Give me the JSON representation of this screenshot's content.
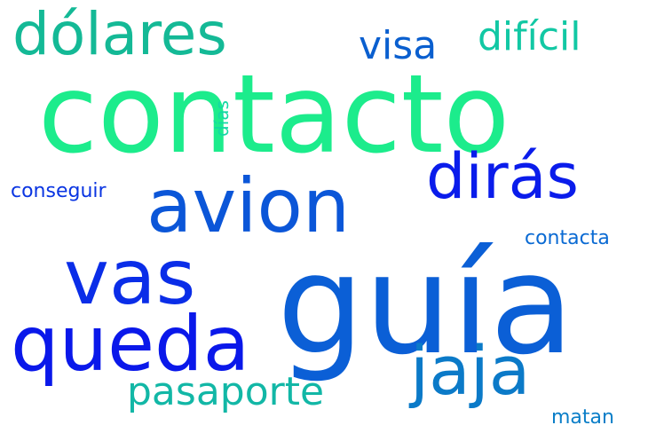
{
  "words": {
    "contacto": {
      "text": "contacto",
      "color": "#1cec8c"
    },
    "guia": {
      "text": "guía",
      "color": "#0b5fd6"
    },
    "avion": {
      "text": "avion",
      "color": "#0b56d8"
    },
    "vas": {
      "text": "vas",
      "color": "#0a2de8"
    },
    "queda": {
      "text": "queda",
      "color": "#0a18ea"
    },
    "dolares": {
      "text": "dólares",
      "color": "#14b996"
    },
    "diras": {
      "text": "dirás",
      "color": "#0a1ceb"
    },
    "jaja": {
      "text": "jaja",
      "color": "#0b7ac8"
    },
    "visa": {
      "text": "visa",
      "color": "#0a5fcf"
    },
    "dificil": {
      "text": "difícil",
      "color": "#12c8a4"
    },
    "pasaporte": {
      "text": "pasaporte",
      "color": "#12b7a6"
    },
    "conseguir": {
      "text": "conseguir",
      "color": "#0a35e2"
    },
    "contacta": {
      "text": "contacta",
      "color": "#0a6ad3"
    },
    "matan": {
      "text": "matan",
      "color": "#0a7ec8"
    },
    "dias": {
      "text": "días",
      "color": "#14d8a4"
    }
  }
}
